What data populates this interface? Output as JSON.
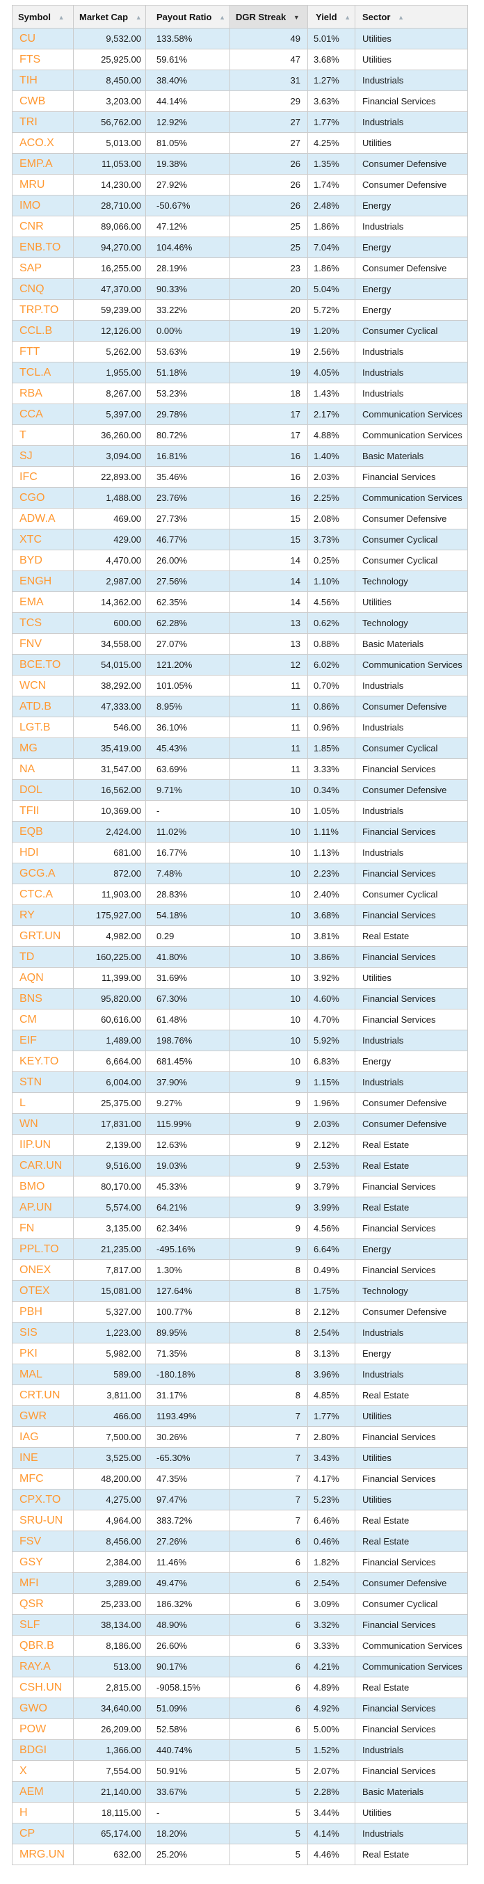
{
  "colors": {
    "symbol_link": "#ff9933",
    "row_stripe": "#d9ecf7",
    "border": "#cccccc",
    "header_bg": "#f2f2f2",
    "sorted_header_bg": "#e1e1e1",
    "sort_arrow_inactive": "#9fadb8",
    "sort_arrow_active": "#3a3a3a"
  },
  "icons": {
    "asc": "▲",
    "desc": "▼"
  },
  "table": {
    "columns": [
      {
        "key": "symbol",
        "label": "Symbol",
        "align": "left",
        "sort_arrow": "asc",
        "sorted": false
      },
      {
        "key": "market-cap",
        "label": "Market Cap",
        "align": "right",
        "sort_arrow": "asc",
        "sorted": false
      },
      {
        "key": "payout-ratio",
        "label": "Payout Ratio",
        "align": "left",
        "sort_arrow": "asc",
        "sorted": false
      },
      {
        "key": "dgr-streak",
        "label": "DGR Streak",
        "align": "right",
        "sort_arrow": "desc",
        "sorted": true
      },
      {
        "key": "yield",
        "label": "Yield",
        "align": "left",
        "sort_arrow": "asc",
        "sorted": false
      },
      {
        "key": "sector",
        "label": "Sector",
        "align": "left",
        "sort_arrow": "asc",
        "sorted": false
      }
    ],
    "rows": [
      [
        "CU",
        "9,532.00",
        "133.58%",
        "49",
        "5.01%",
        "Utilities"
      ],
      [
        "FTS",
        "25,925.00",
        "59.61%",
        "47",
        "3.68%",
        "Utilities"
      ],
      [
        "TIH",
        "8,450.00",
        "38.40%",
        "31",
        "1.27%",
        "Industrials"
      ],
      [
        "CWB",
        "3,203.00",
        "44.14%",
        "29",
        "3.63%",
        "Financial Services"
      ],
      [
        "TRI",
        "56,762.00",
        "12.92%",
        "27",
        "1.77%",
        "Industrials"
      ],
      [
        "ACO.X",
        "5,013.00",
        "81.05%",
        "27",
        "4.25%",
        "Utilities"
      ],
      [
        "EMP.A",
        "11,053.00",
        "19.38%",
        "26",
        "1.35%",
        "Consumer Defensive"
      ],
      [
        "MRU",
        "14,230.00",
        "27.92%",
        "26",
        "1.74%",
        "Consumer Defensive"
      ],
      [
        "IMO",
        "28,710.00",
        "-50.67%",
        "26",
        "2.48%",
        "Energy"
      ],
      [
        "CNR",
        "89,066.00",
        "47.12%",
        "25",
        "1.86%",
        "Industrials"
      ],
      [
        "ENB.TO",
        "94,270.00",
        "104.46%",
        "25",
        "7.04%",
        "Energy"
      ],
      [
        "SAP",
        "16,255.00",
        "28.19%",
        "23",
        "1.86%",
        "Consumer Defensive"
      ],
      [
        "CNQ",
        "47,370.00",
        "90.33%",
        "20",
        "5.04%",
        "Energy"
      ],
      [
        "TRP.TO",
        "59,239.00",
        "33.22%",
        "20",
        "5.72%",
        "Energy"
      ],
      [
        "CCL.B",
        "12,126.00",
        "0.00%",
        "19",
        "1.20%",
        "Consumer Cyclical"
      ],
      [
        "FTT",
        "5,262.00",
        "53.63%",
        "19",
        "2.56%",
        "Industrials"
      ],
      [
        "TCL.A",
        "1,955.00",
        "51.18%",
        "19",
        "4.05%",
        "Industrials"
      ],
      [
        "RBA",
        "8,267.00",
        "53.23%",
        "18",
        "1.43%",
        "Industrials"
      ],
      [
        "CCA",
        "5,397.00",
        "29.78%",
        "17",
        "2.17%",
        "Communication Services"
      ],
      [
        "T",
        "36,260.00",
        "80.72%",
        "17",
        "4.88%",
        "Communication Services"
      ],
      [
        "SJ",
        "3,094.00",
        "16.81%",
        "16",
        "1.40%",
        "Basic Materials"
      ],
      [
        "IFC",
        "22,893.00",
        "35.46%",
        "16",
        "2.03%",
        "Financial Services"
      ],
      [
        "CGO",
        "1,488.00",
        "23.76%",
        "16",
        "2.25%",
        "Communication Services"
      ],
      [
        "ADW.A",
        "469.00",
        "27.73%",
        "15",
        "2.08%",
        "Consumer Defensive"
      ],
      [
        "XTC",
        "429.00",
        "46.77%",
        "15",
        "3.73%",
        "Consumer Cyclical"
      ],
      [
        "BYD",
        "4,470.00",
        "26.00%",
        "14",
        "0.25%",
        "Consumer Cyclical"
      ],
      [
        "ENGH",
        "2,987.00",
        "27.56%",
        "14",
        "1.10%",
        "Technology"
      ],
      [
        "EMA",
        "14,362.00",
        "62.35%",
        "14",
        "4.56%",
        "Utilities"
      ],
      [
        "TCS",
        "600.00",
        "62.28%",
        "13",
        "0.62%",
        "Technology"
      ],
      [
        "FNV",
        "34,558.00",
        "27.07%",
        "13",
        "0.88%",
        "Basic Materials"
      ],
      [
        "BCE.TO",
        "54,015.00",
        "121.20%",
        "12",
        "6.02%",
        "Communication Services"
      ],
      [
        "WCN",
        "38,292.00",
        "101.05%",
        "11",
        "0.70%",
        "Industrials"
      ],
      [
        "ATD.B",
        "47,333.00",
        "8.95%",
        "11",
        "0.86%",
        "Consumer Defensive"
      ],
      [
        "LGT.B",
        "546.00",
        "36.10%",
        "11",
        "0.96%",
        "Industrials"
      ],
      [
        "MG",
        "35,419.00",
        "45.43%",
        "11",
        "1.85%",
        "Consumer Cyclical"
      ],
      [
        "NA",
        "31,547.00",
        "63.69%",
        "11",
        "3.33%",
        "Financial Services"
      ],
      [
        "DOL",
        "16,562.00",
        "9.71%",
        "10",
        "0.34%",
        "Consumer Defensive"
      ],
      [
        "TFII",
        "10,369.00",
        "-",
        "10",
        "1.05%",
        "Industrials"
      ],
      [
        "EQB",
        "2,424.00",
        "11.02%",
        "10",
        "1.11%",
        "Financial Services"
      ],
      [
        "HDI",
        "681.00",
        "16.77%",
        "10",
        "1.13%",
        "Industrials"
      ],
      [
        "GCG.A",
        "872.00",
        "7.48%",
        "10",
        "2.23%",
        "Financial Services"
      ],
      [
        "CTC.A",
        "11,903.00",
        "28.83%",
        "10",
        "2.40%",
        "Consumer Cyclical"
      ],
      [
        "RY",
        "175,927.00",
        "54.18%",
        "10",
        "3.68%",
        "Financial Services"
      ],
      [
        "GRT.UN",
        "4,982.00",
        "0.29",
        "10",
        "3.81%",
        "Real Estate"
      ],
      [
        "TD",
        "160,225.00",
        "41.80%",
        "10",
        "3.86%",
        "Financial Services"
      ],
      [
        "AQN",
        "11,399.00",
        "31.69%",
        "10",
        "3.92%",
        "Utilities"
      ],
      [
        "BNS",
        "95,820.00",
        "67.30%",
        "10",
        "4.60%",
        "Financial Services"
      ],
      [
        "CM",
        "60,616.00",
        "61.48%",
        "10",
        "4.70%",
        "Financial Services"
      ],
      [
        "EIF",
        "1,489.00",
        "198.76%",
        "10",
        "5.92%",
        "Industrials"
      ],
      [
        "KEY.TO",
        "6,664.00",
        "681.45%",
        "10",
        "6.83%",
        "Energy"
      ],
      [
        "STN",
        "6,004.00",
        "37.90%",
        "9",
        "1.15%",
        "Industrials"
      ],
      [
        "L",
        "25,375.00",
        "9.27%",
        "9",
        "1.96%",
        "Consumer Defensive"
      ],
      [
        "WN",
        "17,831.00",
        "115.99%",
        "9",
        "2.03%",
        "Consumer Defensive"
      ],
      [
        "IIP.UN",
        "2,139.00",
        "12.63%",
        "9",
        "2.12%",
        "Real Estate"
      ],
      [
        "CAR.UN",
        "9,516.00",
        "19.03%",
        "9",
        "2.53%",
        "Real Estate"
      ],
      [
        "BMO",
        "80,170.00",
        "45.33%",
        "9",
        "3.79%",
        "Financial Services"
      ],
      [
        "AP.UN",
        "5,574.00",
        "64.21%",
        "9",
        "3.99%",
        "Real Estate"
      ],
      [
        "FN",
        "3,135.00",
        "62.34%",
        "9",
        "4.56%",
        "Financial Services"
      ],
      [
        "PPL.TO",
        "21,235.00",
        "-495.16%",
        "9",
        "6.64%",
        "Energy"
      ],
      [
        "ONEX",
        "7,817.00",
        "1.30%",
        "8",
        "0.49%",
        "Financial Services"
      ],
      [
        "OTEX",
        "15,081.00",
        "127.64%",
        "8",
        "1.75%",
        "Technology"
      ],
      [
        "PBH",
        "5,327.00",
        "100.77%",
        "8",
        "2.12%",
        "Consumer Defensive"
      ],
      [
        "SIS",
        "1,223.00",
        "89.95%",
        "8",
        "2.54%",
        "Industrials"
      ],
      [
        "PKI",
        "5,982.00",
        "71.35%",
        "8",
        "3.13%",
        "Energy"
      ],
      [
        "MAL",
        "589.00",
        "-180.18%",
        "8",
        "3.96%",
        "Industrials"
      ],
      [
        "CRT.UN",
        "3,811.00",
        "31.17%",
        "8",
        "4.85%",
        "Real Estate"
      ],
      [
        "GWR",
        "466.00",
        "1193.49%",
        "7",
        "1.77%",
        "Utilities"
      ],
      [
        "IAG",
        "7,500.00",
        "30.26%",
        "7",
        "2.80%",
        "Financial Services"
      ],
      [
        "INE",
        "3,525.00",
        "-65.30%",
        "7",
        "3.43%",
        "Utilities"
      ],
      [
        "MFC",
        "48,200.00",
        "47.35%",
        "7",
        "4.17%",
        "Financial Services"
      ],
      [
        "CPX.TO",
        "4,275.00",
        "97.47%",
        "7",
        "5.23%",
        "Utilities"
      ],
      [
        "SRU-UN",
        "4,964.00",
        "383.72%",
        "7",
        "6.46%",
        "Real Estate"
      ],
      [
        "FSV",
        "8,456.00",
        "27.26%",
        "6",
        "0.46%",
        "Real Estate"
      ],
      [
        "GSY",
        "2,384.00",
        "11.46%",
        "6",
        "1.82%",
        "Financial Services"
      ],
      [
        "MFI",
        "3,289.00",
        "49.47%",
        "6",
        "2.54%",
        "Consumer Defensive"
      ],
      [
        "QSR",
        "25,233.00",
        "186.32%",
        "6",
        "3.09%",
        "Consumer Cyclical"
      ],
      [
        "SLF",
        "38,134.00",
        "48.90%",
        "6",
        "3.32%",
        "Financial Services"
      ],
      [
        "QBR.B",
        "8,186.00",
        "26.60%",
        "6",
        "3.33%",
        "Communication Services"
      ],
      [
        "RAY.A",
        "513.00",
        "90.17%",
        "6",
        "4.21%",
        "Communication Services"
      ],
      [
        "CSH.UN",
        "2,815.00",
        "-9058.15%",
        "6",
        "4.89%",
        "Real Estate"
      ],
      [
        "GWO",
        "34,640.00",
        "51.09%",
        "6",
        "4.92%",
        "Financial Services"
      ],
      [
        "POW",
        "26,209.00",
        "52.58%",
        "6",
        "5.00%",
        "Financial Services"
      ],
      [
        "BDGI",
        "1,366.00",
        "440.74%",
        "5",
        "1.52%",
        "Industrials"
      ],
      [
        "X",
        "7,554.00",
        "50.91%",
        "5",
        "2.07%",
        "Financial Services"
      ],
      [
        "AEM",
        "21,140.00",
        "33.67%",
        "5",
        "2.28%",
        "Basic Materials"
      ],
      [
        "H",
        "18,115.00",
        "-",
        "5",
        "3.44%",
        "Utilities"
      ],
      [
        "CP",
        "65,174.00",
        "18.20%",
        "5",
        "4.14%",
        "Industrials"
      ],
      [
        "MRG.UN",
        "632.00",
        "25.20%",
        "5",
        "4.46%",
        "Real Estate"
      ]
    ]
  }
}
